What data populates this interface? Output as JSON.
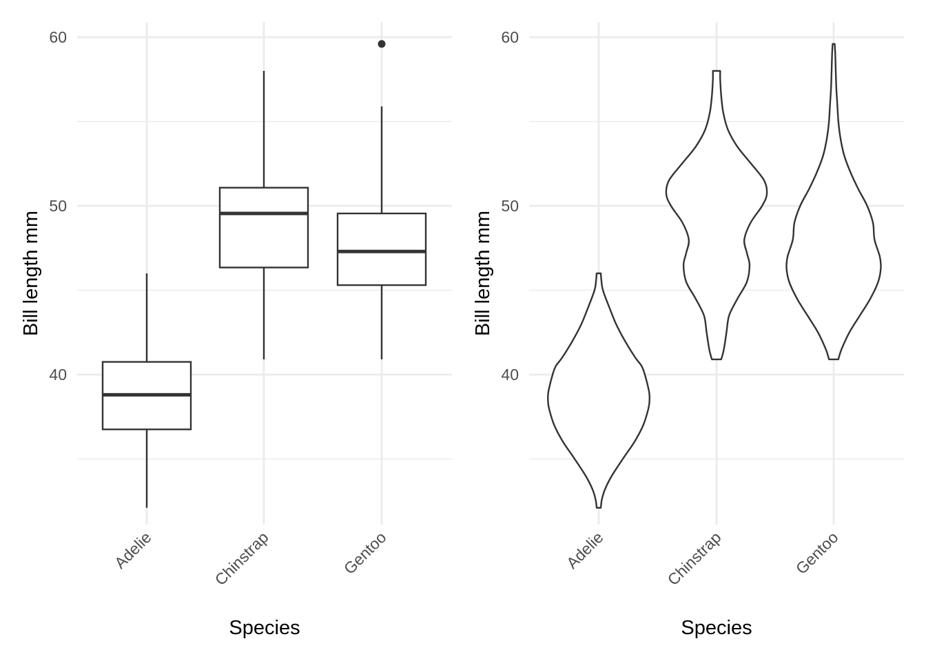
{
  "chart_data": [
    {
      "type": "box",
      "xlabel": "Species",
      "ylabel": "Bill length mm",
      "categories": [
        "Adelie",
        "Chinstrap",
        "Gentoo"
      ],
      "y_ticks": [
        40,
        50,
        60
      ],
      "ylim": [
        31.1,
        60.9
      ],
      "grid": true,
      "boxes": [
        {
          "category": "Adelie",
          "whisker_low": 32.1,
          "q1": 36.75,
          "median": 38.8,
          "q3": 40.75,
          "whisker_high": 46.0,
          "outliers": []
        },
        {
          "category": "Chinstrap",
          "whisker_low": 40.9,
          "q1": 46.35,
          "median": 49.55,
          "q3": 51.08,
          "whisker_high": 58.0,
          "outliers": []
        },
        {
          "category": "Gentoo",
          "whisker_low": 40.9,
          "q1": 45.3,
          "median": 47.3,
          "q3": 49.55,
          "whisker_high": 55.9,
          "outliers": [
            59.6
          ]
        }
      ]
    },
    {
      "type": "violin",
      "xlabel": "Species",
      "ylabel": "Bill length mm",
      "categories": [
        "Adelie",
        "Chinstrap",
        "Gentoo"
      ],
      "y_ticks": [
        40,
        50,
        60
      ],
      "ylim": [
        31.1,
        60.9
      ],
      "grid": true,
      "violins": [
        {
          "category": "Adelie",
          "density_profile": [
            [
              32.1,
              0.04
            ],
            [
              32.6,
              0.06
            ],
            [
              33.2,
              0.12
            ],
            [
              34,
              0.25
            ],
            [
              35,
              0.46
            ],
            [
              36,
              0.68
            ],
            [
              37,
              0.85
            ],
            [
              38,
              0.95
            ],
            [
              38.5,
              0.97
            ],
            [
              39,
              0.96
            ],
            [
              40,
              0.88
            ],
            [
              40.5,
              0.82
            ],
            [
              41,
              0.7
            ],
            [
              42,
              0.5
            ],
            [
              43,
              0.33
            ],
            [
              44,
              0.2
            ],
            [
              45,
              0.08
            ],
            [
              45.6,
              0.05
            ],
            [
              46,
              0.04
            ]
          ]
        },
        {
          "category": "Chinstrap",
          "density_profile": [
            [
              40.9,
              0.09
            ],
            [
              41.5,
              0.14
            ],
            [
              42.5,
              0.19
            ],
            [
              43.5,
              0.24
            ],
            [
              44.5,
              0.4
            ],
            [
              45.5,
              0.58
            ],
            [
              46.5,
              0.63
            ],
            [
              47.2,
              0.58
            ],
            [
              48,
              0.53
            ],
            [
              49,
              0.65
            ],
            [
              50,
              0.87
            ],
            [
              50.7,
              0.96
            ],
            [
              51.5,
              0.91
            ],
            [
              52.5,
              0.66
            ],
            [
              53.5,
              0.4
            ],
            [
              54.5,
              0.22
            ],
            [
              55.5,
              0.13
            ],
            [
              56.5,
              0.09
            ],
            [
              57.5,
              0.07
            ],
            [
              58,
              0.07
            ]
          ]
        },
        {
          "category": "Gentoo",
          "density_profile": [
            [
              40.9,
              0.09
            ],
            [
              41.5,
              0.15
            ],
            [
              42.5,
              0.3
            ],
            [
              43.5,
              0.5
            ],
            [
              44.5,
              0.7
            ],
            [
              45.5,
              0.85
            ],
            [
              46.3,
              0.9
            ],
            [
              47,
              0.88
            ],
            [
              48,
              0.78
            ],
            [
              49,
              0.75
            ],
            [
              50,
              0.64
            ],
            [
              51,
              0.47
            ],
            [
              52,
              0.32
            ],
            [
              53,
              0.2
            ],
            [
              54,
              0.13
            ],
            [
              55,
              0.09
            ],
            [
              56,
              0.07
            ],
            [
              57,
              0.05
            ],
            [
              58,
              0.04
            ],
            [
              59,
              0.03
            ],
            [
              59.6,
              0.02
            ]
          ]
        }
      ]
    }
  ]
}
